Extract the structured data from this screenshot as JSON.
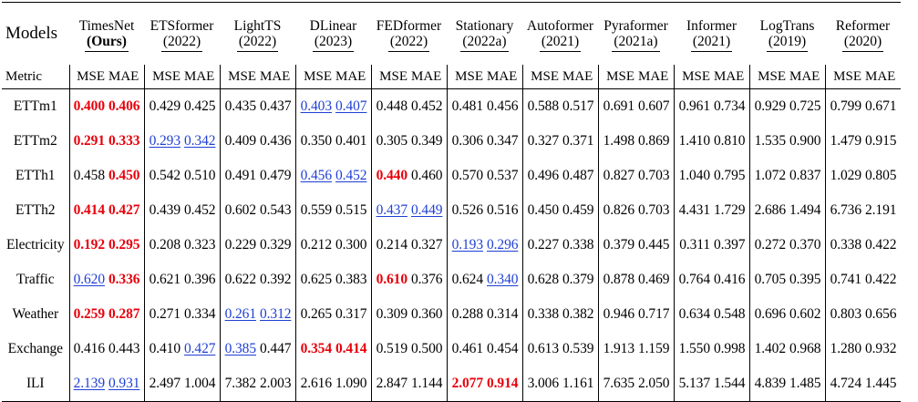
{
  "header": {
    "models_label": "Models",
    "metric_label": "Metric",
    "mse_label": "MSE",
    "mae_label": "MAE"
  },
  "models": [
    {
      "name": "TimesNet",
      "sub": "(Ours)"
    },
    {
      "name": "ETSformer",
      "sub": "(2022)"
    },
    {
      "name": "LightTS",
      "sub": "(2022)"
    },
    {
      "name": "DLinear",
      "sub": "(2023)"
    },
    {
      "name": "FEDformer",
      "sub": "(2022)"
    },
    {
      "name": "Stationary",
      "sub": "(2022a)"
    },
    {
      "name": "Autoformer",
      "sub": "(2021)"
    },
    {
      "name": "Pyraformer",
      "sub": "(2021a)"
    },
    {
      "name": "Informer",
      "sub": "(2021)"
    },
    {
      "name": "LogTrans",
      "sub": "(2019)"
    },
    {
      "name": "Reformer",
      "sub": "(2020)"
    }
  ],
  "rows": [
    {
      "dataset": "ETTm1",
      "values": [
        [
          "0.400",
          "best"
        ],
        [
          "0.406",
          "best"
        ],
        [
          "0.429",
          ""
        ],
        [
          "0.425",
          ""
        ],
        [
          "0.435",
          ""
        ],
        [
          "0.437",
          ""
        ],
        [
          "0.403",
          "second"
        ],
        [
          "0.407",
          "second"
        ],
        [
          "0.448",
          ""
        ],
        [
          "0.452",
          ""
        ],
        [
          "0.481",
          ""
        ],
        [
          "0.456",
          ""
        ],
        [
          "0.588",
          ""
        ],
        [
          "0.517",
          ""
        ],
        [
          "0.691",
          ""
        ],
        [
          "0.607",
          ""
        ],
        [
          "0.961",
          ""
        ],
        [
          "0.734",
          ""
        ],
        [
          "0.929",
          ""
        ],
        [
          "0.725",
          ""
        ],
        [
          "0.799",
          ""
        ],
        [
          "0.671",
          ""
        ]
      ]
    },
    {
      "dataset": "ETTm2",
      "values": [
        [
          "0.291",
          "best"
        ],
        [
          "0.333",
          "best"
        ],
        [
          "0.293",
          "second"
        ],
        [
          "0.342",
          "second"
        ],
        [
          "0.409",
          ""
        ],
        [
          "0.436",
          ""
        ],
        [
          "0.350",
          ""
        ],
        [
          "0.401",
          ""
        ],
        [
          "0.305",
          ""
        ],
        [
          "0.349",
          ""
        ],
        [
          "0.306",
          ""
        ],
        [
          "0.347",
          ""
        ],
        [
          "0.327",
          ""
        ],
        [
          "0.371",
          ""
        ],
        [
          "1.498",
          ""
        ],
        [
          "0.869",
          ""
        ],
        [
          "1.410",
          ""
        ],
        [
          "0.810",
          ""
        ],
        [
          "1.535",
          ""
        ],
        [
          "0.900",
          ""
        ],
        [
          "1.479",
          ""
        ],
        [
          "0.915",
          ""
        ]
      ]
    },
    {
      "dataset": "ETTh1",
      "values": [
        [
          "0.458",
          ""
        ],
        [
          "0.450",
          "best"
        ],
        [
          "0.542",
          ""
        ],
        [
          "0.510",
          ""
        ],
        [
          "0.491",
          ""
        ],
        [
          "0.479",
          ""
        ],
        [
          "0.456",
          "second"
        ],
        [
          "0.452",
          "second"
        ],
        [
          "0.440",
          "best"
        ],
        [
          "0.460",
          ""
        ],
        [
          "0.570",
          ""
        ],
        [
          "0.537",
          ""
        ],
        [
          "0.496",
          ""
        ],
        [
          "0.487",
          ""
        ],
        [
          "0.827",
          ""
        ],
        [
          "0.703",
          ""
        ],
        [
          "1.040",
          ""
        ],
        [
          "0.795",
          ""
        ],
        [
          "1.072",
          ""
        ],
        [
          "0.837",
          ""
        ],
        [
          "1.029",
          ""
        ],
        [
          "0.805",
          ""
        ]
      ]
    },
    {
      "dataset": "ETTh2",
      "values": [
        [
          "0.414",
          "best"
        ],
        [
          "0.427",
          "best"
        ],
        [
          "0.439",
          ""
        ],
        [
          "0.452",
          ""
        ],
        [
          "0.602",
          ""
        ],
        [
          "0.543",
          ""
        ],
        [
          "0.559",
          ""
        ],
        [
          "0.515",
          ""
        ],
        [
          "0.437",
          "second"
        ],
        [
          "0.449",
          "second"
        ],
        [
          "0.526",
          ""
        ],
        [
          "0.516",
          ""
        ],
        [
          "0.450",
          ""
        ],
        [
          "0.459",
          ""
        ],
        [
          "0.826",
          ""
        ],
        [
          "0.703",
          ""
        ],
        [
          "4.431",
          ""
        ],
        [
          "1.729",
          ""
        ],
        [
          "2.686",
          ""
        ],
        [
          "1.494",
          ""
        ],
        [
          "6.736",
          ""
        ],
        [
          "2.191",
          ""
        ]
      ]
    },
    {
      "dataset": "Electricity",
      "values": [
        [
          "0.192",
          "best"
        ],
        [
          "0.295",
          "best"
        ],
        [
          "0.208",
          ""
        ],
        [
          "0.323",
          ""
        ],
        [
          "0.229",
          ""
        ],
        [
          "0.329",
          ""
        ],
        [
          "0.212",
          ""
        ],
        [
          "0.300",
          ""
        ],
        [
          "0.214",
          ""
        ],
        [
          "0.327",
          ""
        ],
        [
          "0.193",
          "second"
        ],
        [
          "0.296",
          "second"
        ],
        [
          "0.227",
          ""
        ],
        [
          "0.338",
          ""
        ],
        [
          "0.379",
          ""
        ],
        [
          "0.445",
          ""
        ],
        [
          "0.311",
          ""
        ],
        [
          "0.397",
          ""
        ],
        [
          "0.272",
          ""
        ],
        [
          "0.370",
          ""
        ],
        [
          "0.338",
          ""
        ],
        [
          "0.422",
          ""
        ]
      ]
    },
    {
      "dataset": "Traffic",
      "values": [
        [
          "0.620",
          "second"
        ],
        [
          "0.336",
          "best"
        ],
        [
          "0.621",
          ""
        ],
        [
          "0.396",
          ""
        ],
        [
          "0.622",
          ""
        ],
        [
          "0.392",
          ""
        ],
        [
          "0.625",
          ""
        ],
        [
          "0.383",
          ""
        ],
        [
          "0.610",
          "best"
        ],
        [
          "0.376",
          ""
        ],
        [
          "0.624",
          ""
        ],
        [
          "0.340",
          "second"
        ],
        [
          "0.628",
          ""
        ],
        [
          "0.379",
          ""
        ],
        [
          "0.878",
          ""
        ],
        [
          "0.469",
          ""
        ],
        [
          "0.764",
          ""
        ],
        [
          "0.416",
          ""
        ],
        [
          "0.705",
          ""
        ],
        [
          "0.395",
          ""
        ],
        [
          "0.741",
          ""
        ],
        [
          "0.422",
          ""
        ]
      ]
    },
    {
      "dataset": "Weather",
      "values": [
        [
          "0.259",
          "best"
        ],
        [
          "0.287",
          "best"
        ],
        [
          "0.271",
          ""
        ],
        [
          "0.334",
          ""
        ],
        [
          "0.261",
          "second"
        ],
        [
          "0.312",
          "second"
        ],
        [
          "0.265",
          ""
        ],
        [
          "0.317",
          ""
        ],
        [
          "0.309",
          ""
        ],
        [
          "0.360",
          ""
        ],
        [
          "0.288",
          ""
        ],
        [
          "0.314",
          ""
        ],
        [
          "0.338",
          ""
        ],
        [
          "0.382",
          ""
        ],
        [
          "0.946",
          ""
        ],
        [
          "0.717",
          ""
        ],
        [
          "0.634",
          ""
        ],
        [
          "0.548",
          ""
        ],
        [
          "0.696",
          ""
        ],
        [
          "0.602",
          ""
        ],
        [
          "0.803",
          ""
        ],
        [
          "0.656",
          ""
        ]
      ]
    },
    {
      "dataset": "Exchange",
      "values": [
        [
          "0.416",
          ""
        ],
        [
          "0.443",
          ""
        ],
        [
          "0.410",
          ""
        ],
        [
          "0.427",
          "second"
        ],
        [
          "0.385",
          "second"
        ],
        [
          "0.447",
          ""
        ],
        [
          "0.354",
          "best"
        ],
        [
          "0.414",
          "best"
        ],
        [
          "0.519",
          ""
        ],
        [
          "0.500",
          ""
        ],
        [
          "0.461",
          ""
        ],
        [
          "0.454",
          ""
        ],
        [
          "0.613",
          ""
        ],
        [
          "0.539",
          ""
        ],
        [
          "1.913",
          ""
        ],
        [
          "1.159",
          ""
        ],
        [
          "1.550",
          ""
        ],
        [
          "0.998",
          ""
        ],
        [
          "1.402",
          ""
        ],
        [
          "0.968",
          ""
        ],
        [
          "1.280",
          ""
        ],
        [
          "0.932",
          ""
        ]
      ]
    },
    {
      "dataset": "ILI",
      "values": [
        [
          "2.139",
          "second"
        ],
        [
          "0.931",
          "second"
        ],
        [
          "2.497",
          ""
        ],
        [
          "1.004",
          ""
        ],
        [
          "7.382",
          ""
        ],
        [
          "2.003",
          ""
        ],
        [
          "2.616",
          ""
        ],
        [
          "1.090",
          ""
        ],
        [
          "2.847",
          ""
        ],
        [
          "1.144",
          ""
        ],
        [
          "2.077",
          "best"
        ],
        [
          "0.914",
          "best"
        ],
        [
          "3.006",
          ""
        ],
        [
          "1.161",
          ""
        ],
        [
          "7.635",
          ""
        ],
        [
          "2.050",
          ""
        ],
        [
          "5.137",
          ""
        ],
        [
          "1.544",
          ""
        ],
        [
          "4.839",
          ""
        ],
        [
          "1.485",
          ""
        ],
        [
          "4.724",
          ""
        ],
        [
          "1.445",
          ""
        ]
      ]
    }
  ]
}
